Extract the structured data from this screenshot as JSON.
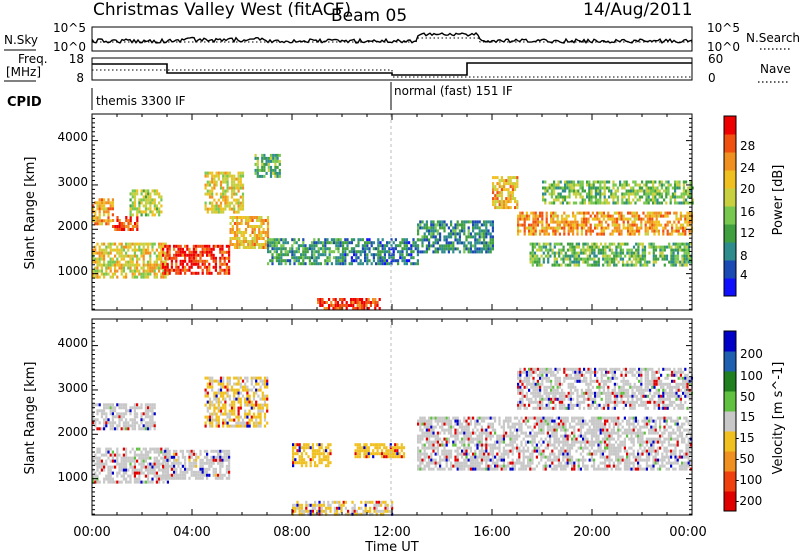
{
  "header": {
    "title": "Christmas Valley West (fitACF)",
    "beam": "Beam 05",
    "date": "14/Aug/2011"
  },
  "sky_panel": {
    "left_label": "N.Sky",
    "left_ticks": [
      "10^5",
      "10^0"
    ],
    "right_ticks": [
      "10^5",
      "10^0"
    ],
    "right_label": "N.Search"
  },
  "freq_panel": {
    "left_label_1": "Freq.",
    "left_label_2": "[MHz]",
    "left_ticks": [
      "18",
      "8"
    ],
    "right_ticks": [
      "60",
      "0"
    ],
    "right_label": "Nave"
  },
  "cpid": {
    "label": "CPID",
    "segments": [
      "themis 3300 IF",
      "normal (fast) 151 IF"
    ]
  },
  "x_axis": {
    "label": "Time UT",
    "ticks": [
      "00:00",
      "04:00",
      "08:00",
      "12:00",
      "16:00",
      "20:00",
      "00:00"
    ]
  },
  "power_panel": {
    "ylabel": "Slant Range [km]",
    "yticks": [
      "1000",
      "2000",
      "3000",
      "4000"
    ],
    "colorbar_label": "Power [dB]",
    "colorbar_ticks": [
      "4",
      "8",
      "12",
      "16",
      "20",
      "24",
      "28"
    ],
    "colors": [
      "#1010ff",
      "#1c4ab4",
      "#2e8c8c",
      "#40a040",
      "#78c850",
      "#c8d040",
      "#f0c020",
      "#f09020",
      "#f05010",
      "#ee0000"
    ]
  },
  "velocity_panel": {
    "ylabel": "Slant Range [km]",
    "yticks": [
      "1000",
      "2000",
      "3000",
      "4000"
    ],
    "colorbar_label": "Velocity [m s^-1]",
    "colorbar_ticks": [
      "200",
      "100",
      "50",
      "15",
      "-15",
      "-50",
      "-100",
      "-200"
    ],
    "colors": [
      "#0000c8",
      "#2060b0",
      "#208020",
      "#60c040",
      "#c8c8c8",
      "#f0c020",
      "#f09020",
      "#f04010",
      "#e00000"
    ]
  },
  "chart_data": [
    {
      "type": "heatmap",
      "name": "power",
      "x_range_hours": [
        0,
        24
      ],
      "y_range_km": [
        180,
        4600
      ],
      "value_range_db": [
        0,
        30
      ],
      "features": [
        {
          "t": [
            0.0,
            0.8
          ],
          "r": [
            2100,
            2700
          ],
          "level": 22
        },
        {
          "t": [
            0.0,
            3.0
          ],
          "r": [
            900,
            1700
          ],
          "level": 18
        },
        {
          "t": [
            0.8,
            1.8
          ],
          "r": [
            2000,
            2300
          ],
          "level": 26
        },
        {
          "t": [
            1.5,
            2.8
          ],
          "r": [
            2300,
            2900
          ],
          "level": 16
        },
        {
          "t": [
            2.8,
            5.5
          ],
          "r": [
            1000,
            1650
          ],
          "level": 27
        },
        {
          "t": [
            4.5,
            6.0
          ],
          "r": [
            2400,
            3300
          ],
          "level": 18
        },
        {
          "t": [
            5.5,
            7.0
          ],
          "r": [
            1600,
            2300
          ],
          "level": 20
        },
        {
          "t": [
            6.5,
            7.5
          ],
          "r": [
            3200,
            3700
          ],
          "level": 12
        },
        {
          "t": [
            7.0,
            10.0
          ],
          "r": [
            1200,
            1800
          ],
          "level": 9
        },
        {
          "t": [
            9.0,
            11.5
          ],
          "r": [
            200,
            450
          ],
          "level": 26
        },
        {
          "t": [
            10.0,
            13.0
          ],
          "r": [
            1200,
            1800
          ],
          "level": 7
        },
        {
          "t": [
            13.0,
            16.0
          ],
          "r": [
            1500,
            2200
          ],
          "level": 8
        },
        {
          "t": [
            16.0,
            17.0
          ],
          "r": [
            2500,
            3200
          ],
          "level": 20
        },
        {
          "t": [
            17.0,
            24.0
          ],
          "r": [
            1900,
            2400
          ],
          "level": 22
        },
        {
          "t": [
            17.5,
            24.0
          ],
          "r": [
            1200,
            1700
          ],
          "level": 12
        },
        {
          "t": [
            18.0,
            24.0
          ],
          "r": [
            2600,
            3100
          ],
          "level": 13
        }
      ]
    },
    {
      "type": "heatmap",
      "name": "velocity",
      "x_range_hours": [
        0,
        24
      ],
      "y_range_km": [
        180,
        4600
      ],
      "value_range_ms": [
        -250,
        250
      ],
      "features": [
        {
          "t": [
            0.0,
            3.0
          ],
          "r": [
            900,
            1700
          ],
          "v": 0
        },
        {
          "t": [
            0.0,
            2.5
          ],
          "r": [
            2100,
            2700
          ],
          "v": 0
        },
        {
          "t": [
            2.8,
            5.5
          ],
          "r": [
            1000,
            1650
          ],
          "v": -10
        },
        {
          "t": [
            4.5,
            7.0
          ],
          "r": [
            2200,
            3300
          ],
          "v": -40
        },
        {
          "t": [
            8.0,
            9.5
          ],
          "r": [
            1300,
            1800
          ],
          "v": -60
        },
        {
          "t": [
            10.5,
            12.5
          ],
          "r": [
            1500,
            1800
          ],
          "v": -60
        },
        {
          "t": [
            8.0,
            12.0
          ],
          "r": [
            200,
            500
          ],
          "v": -30
        },
        {
          "t": [
            13.0,
            24.0
          ],
          "r": [
            1200,
            2400
          ],
          "v": 0
        },
        {
          "t": [
            17.0,
            24.0
          ],
          "r": [
            2600,
            3500
          ],
          "v": 0
        }
      ]
    }
  ]
}
